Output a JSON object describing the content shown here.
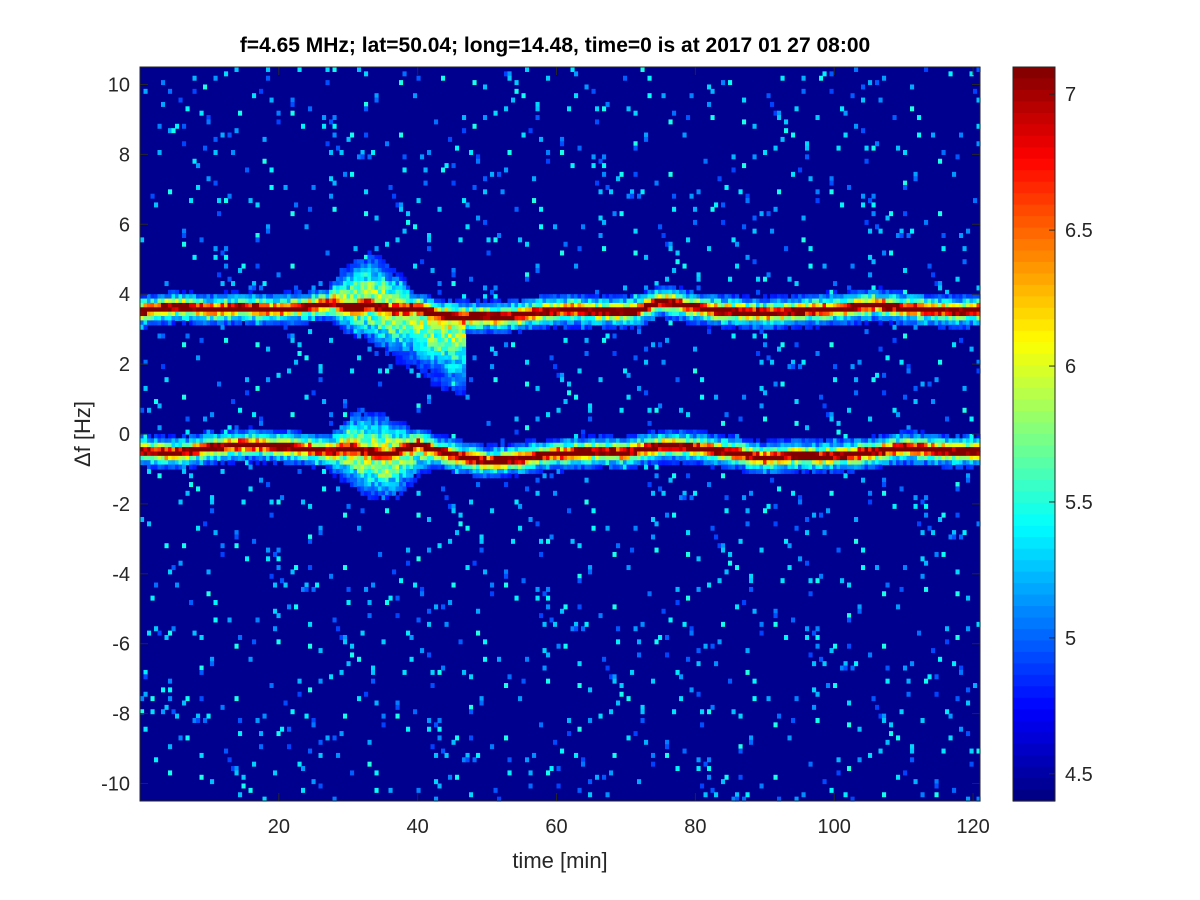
{
  "chart_data": {
    "type": "heatmap",
    "title": "f=4.65 MHz;  lat=50.04; long=14.48, time=0 is at 2017 01 27 08:00",
    "xlabel": "time [min]",
    "ylabel": "Δf [Hz]",
    "xlim": [
      0,
      121
    ],
    "ylim": [
      -10.5,
      10.5
    ],
    "x_ticks": [
      20,
      40,
      60,
      80,
      100,
      120
    ],
    "y_ticks": [
      10,
      8,
      6,
      4,
      2,
      0,
      -2,
      -4,
      -6,
      -8,
      -10
    ],
    "colormap": "jet",
    "clim": [
      4.4,
      7.1
    ],
    "colorbar_ticks": [
      7,
      6.5,
      6,
      5.5,
      5,
      4.5
    ],
    "background_color": "#00008f",
    "traces": [
      {
        "time_min": [
          0,
          5,
          10,
          15,
          20,
          25,
          28,
          30,
          33,
          36,
          40,
          43,
          46,
          50,
          53,
          55,
          58,
          62,
          66,
          70,
          72,
          75,
          78,
          82,
          86,
          90,
          94,
          98,
          102,
          106,
          110,
          114,
          118,
          121
        ],
        "df_hz": [
          3.5,
          3.65,
          3.55,
          3.6,
          3.55,
          3.65,
          3.75,
          3.6,
          3.7,
          3.55,
          3.6,
          3.4,
          3.35,
          3.35,
          3.35,
          3.4,
          3.5,
          3.55,
          3.5,
          3.5,
          3.55,
          3.8,
          3.7,
          3.55,
          3.5,
          3.45,
          3.5,
          3.55,
          3.6,
          3.7,
          3.6,
          3.55,
          3.5,
          3.55
        ]
      },
      {
        "time_min": [
          0,
          5,
          10,
          15,
          20,
          25,
          28,
          30,
          33,
          36,
          40,
          43,
          46,
          50,
          53,
          55,
          58,
          62,
          66,
          70,
          72,
          75,
          78,
          82,
          86,
          90,
          94,
          98,
          102,
          106,
          110,
          114,
          118,
          121
        ],
        "df_hz": [
          -0.5,
          -0.55,
          -0.4,
          -0.3,
          -0.35,
          -0.45,
          -0.5,
          -0.4,
          -0.5,
          -0.6,
          -0.3,
          -0.5,
          -0.65,
          -0.8,
          -0.75,
          -0.7,
          -0.6,
          -0.55,
          -0.5,
          -0.55,
          -0.45,
          -0.35,
          -0.35,
          -0.45,
          -0.55,
          -0.7,
          -0.6,
          -0.65,
          -0.6,
          -0.5,
          -0.4,
          -0.45,
          -0.5,
          -0.5
        ]
      }
    ],
    "disturbance": {
      "time_range_min": [
        27,
        47
      ],
      "upper_spread_to_hz": [
        5.0,
        1.5
      ],
      "lower_spread_to_hz": [
        0.6,
        -1.7
      ]
    }
  }
}
